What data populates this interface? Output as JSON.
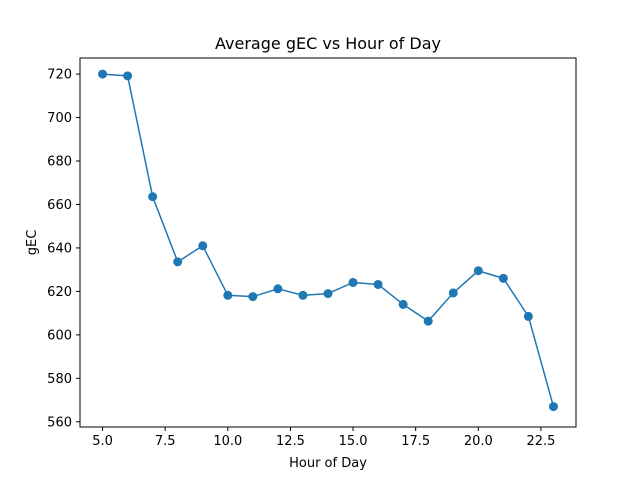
{
  "chart_data": {
    "type": "line",
    "title": "Average gEC vs Hour of Day",
    "xlabel": "Hour of Day",
    "ylabel": "gEC",
    "xlim": [
      4.1,
      23.9
    ],
    "ylim": [
      557.6,
      727.4
    ],
    "xticks": [
      "5.0",
      "7.5",
      "10.0",
      "12.5",
      "15.0",
      "17.5",
      "20.0",
      "22.5"
    ],
    "yticks": [
      "560",
      "580",
      "600",
      "620",
      "640",
      "660",
      "680",
      "700",
      "720"
    ],
    "grid": false,
    "line_color": "#1f77b4",
    "marker": "circle",
    "series": [
      {
        "x": [
          5,
          6,
          7,
          8,
          9,
          10,
          11,
          12,
          13,
          14,
          15,
          16,
          17,
          18,
          19,
          20,
          21,
          22,
          23
        ],
        "y": [
          720.0,
          719.2,
          663.6,
          633.6,
          641.0,
          618.2,
          617.6,
          621.2,
          618.2,
          619.0,
          624.1,
          623.2,
          614.0,
          606.3,
          619.3,
          629.5,
          626.0,
          608.5,
          567.0
        ]
      }
    ]
  }
}
